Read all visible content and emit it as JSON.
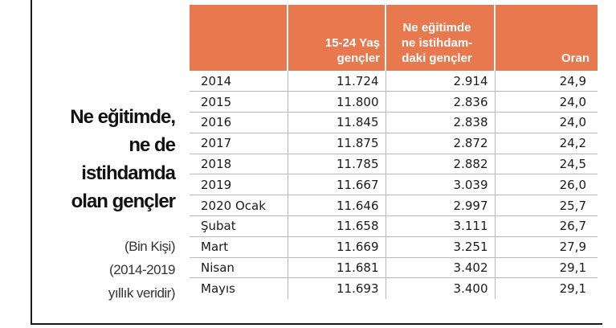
{
  "title_lines": [
    "Ne eğitimde,",
    "ne de",
    "istihdamda",
    "olan gençler"
  ],
  "subtitle_lines": [
    "(Bin Kişi)",
    "(2014-2019",
    "yıllık veridir)"
  ],
  "colors": {
    "header_bg": "#e8784e",
    "header_text": "#ffffff"
  },
  "table": {
    "headers": [
      "",
      "15-24 Yaş gençler",
      "Ne eğitimde ne istihdam-daki gençler",
      "Oran"
    ],
    "header_lines": {
      "col_a": [
        "15-24 Yaş",
        "gençler"
      ],
      "col_b": [
        "Ne eğitimde",
        "ne istihdam-",
        "daki gençler"
      ],
      "col_r": [
        "Oran"
      ]
    },
    "rows": [
      {
        "period": "2014",
        "youth": "11.724",
        "neet": "2.914",
        "rate": "24,9"
      },
      {
        "period": "2015",
        "youth": "11.800",
        "neet": "2.836",
        "rate": "24,0"
      },
      {
        "period": "2016",
        "youth": "11.845",
        "neet": "2.838",
        "rate": "24,0"
      },
      {
        "period": "2017",
        "youth": "11.875",
        "neet": "2.872",
        "rate": "24,2"
      },
      {
        "period": "2018",
        "youth": "11.785",
        "neet": "2.882",
        "rate": "24,5"
      },
      {
        "period": "2019",
        "youth": "11.667",
        "neet": "3.039",
        "rate": "26,0"
      },
      {
        "period": "2020 Ocak",
        "youth": "11.646",
        "neet": "2.997",
        "rate": "25,7"
      },
      {
        "period": "Şubat",
        "youth": "11.658",
        "neet": "3.111",
        "rate": "26,7"
      },
      {
        "period": "Mart",
        "youth": "11.669",
        "neet": "3.251",
        "rate": "27,9"
      },
      {
        "period": "Nisan",
        "youth": "11.681",
        "neet": "3.402",
        "rate": "29,1"
      },
      {
        "period": "Mayıs",
        "youth": "11.693",
        "neet": "3.400",
        "rate": "29,1"
      }
    ]
  }
}
